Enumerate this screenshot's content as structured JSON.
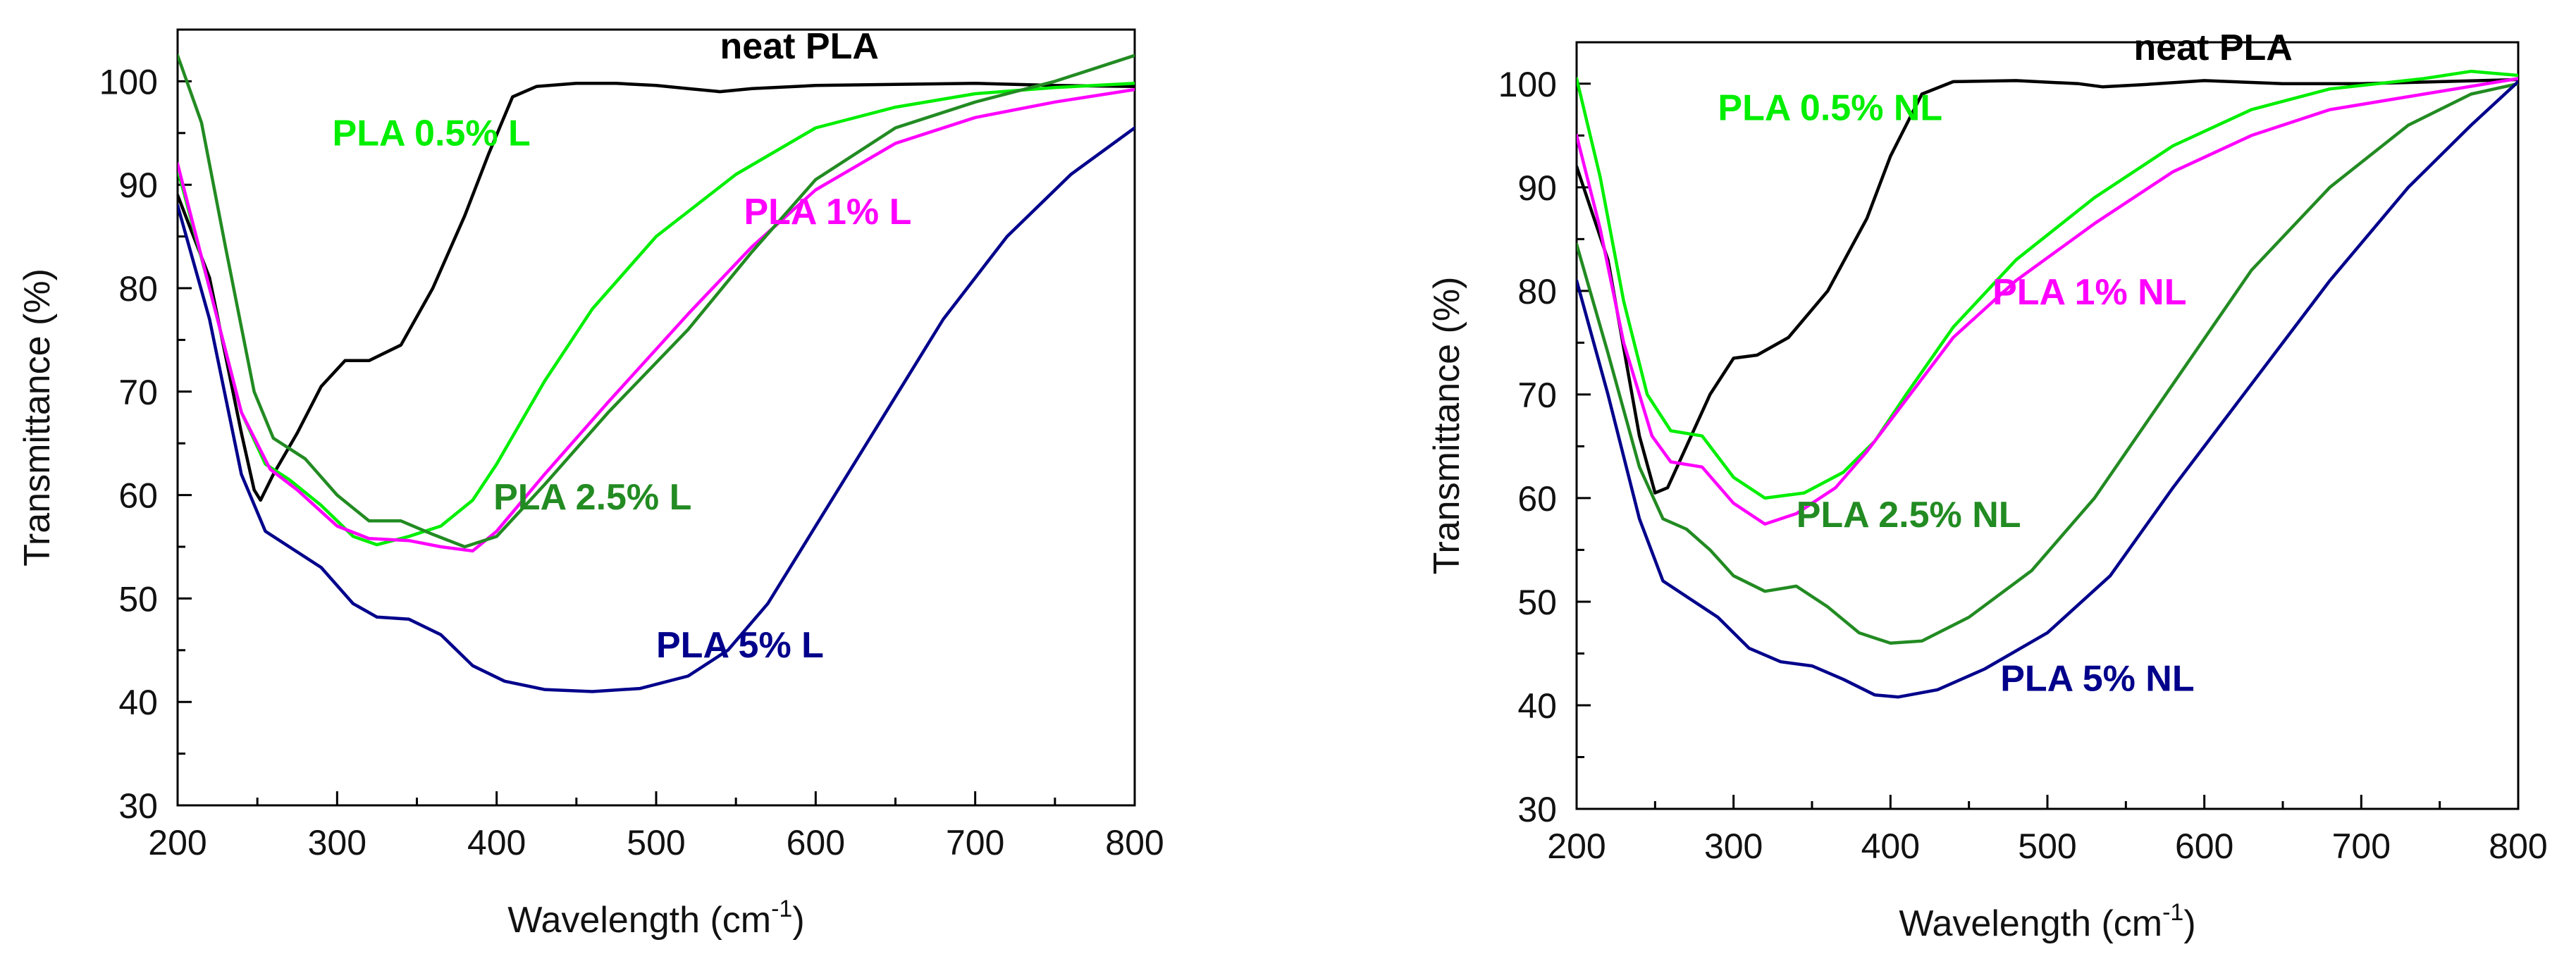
{
  "chart_data": [
    {
      "type": "line",
      "xlabel": "Wavelength (cm",
      "xlabel_sup": "-1",
      "xlabel_close": ")",
      "ylabel": "Transmittance (%)",
      "xlim": [
        200,
        800
      ],
      "ylim": [
        30,
        105
      ],
      "x_ticks": [
        "200",
        "300",
        "400",
        "500",
        "600",
        "700",
        "800"
      ],
      "y_ticks": [
        "30",
        "40",
        "50",
        "60",
        "70",
        "80",
        "90",
        "100"
      ],
      "grid": false,
      "series": [
        {
          "name": "neat PLA",
          "color": "#000000",
          "points": [
            [
              200,
              89
            ],
            [
              220,
              81
            ],
            [
              240,
              66
            ],
            [
              248,
              60.5
            ],
            [
              252,
              59.5
            ],
            [
              260,
              62
            ],
            [
              275,
              66
            ],
            [
              290,
              70.5
            ],
            [
              305,
              73
            ],
            [
              320,
              73
            ],
            [
              340,
              74.5
            ],
            [
              360,
              80
            ],
            [
              380,
              87
            ],
            [
              395,
              93
            ],
            [
              410,
              98.5
            ],
            [
              425,
              99.5
            ],
            [
              450,
              99.8
            ],
            [
              475,
              99.8
            ],
            [
              500,
              99.6
            ],
            [
              520,
              99.3
            ],
            [
              540,
              99.0
            ],
            [
              560,
              99.3
            ],
            [
              600,
              99.6
            ],
            [
              650,
              99.7
            ],
            [
              700,
              99.8
            ],
            [
              750,
              99.6
            ],
            [
              800,
              99.5
            ]
          ]
        },
        {
          "name": "PLA 0.5% L",
          "color": "#00ee00",
          "points": [
            [
              200,
              91.5
            ],
            [
              220,
              80
            ],
            [
              240,
              68
            ],
            [
              255,
              63
            ],
            [
              270,
              61.5
            ],
            [
              290,
              59
            ],
            [
              310,
              56
            ],
            [
              325,
              55.2
            ],
            [
              345,
              56
            ],
            [
              365,
              57
            ],
            [
              385,
              59.5
            ],
            [
              400,
              63
            ],
            [
              430,
              71
            ],
            [
              460,
              78
            ],
            [
              500,
              85
            ],
            [
              550,
              91
            ],
            [
              600,
              95.5
            ],
            [
              650,
              97.5
            ],
            [
              700,
              98.8
            ],
            [
              750,
              99.4
            ],
            [
              800,
              99.8
            ]
          ]
        },
        {
          "name": "PLA 1% L",
          "color": "#ff00ff",
          "points": [
            [
              200,
              92
            ],
            [
              220,
              80
            ],
            [
              240,
              68
            ],
            [
              258,
              62.5
            ],
            [
              275,
              60.5
            ],
            [
              300,
              57
            ],
            [
              320,
              55.8
            ],
            [
              345,
              55.6
            ],
            [
              365,
              55
            ],
            [
              385,
              54.6
            ],
            [
              400,
              56.5
            ],
            [
              430,
              62
            ],
            [
              470,
              69
            ],
            [
              520,
              77.5
            ],
            [
              560,
              84
            ],
            [
              600,
              89.5
            ],
            [
              650,
              94
            ],
            [
              700,
              96.5
            ],
            [
              750,
              98
            ],
            [
              800,
              99.2
            ]
          ]
        },
        {
          "name": "PLA 2.5% L",
          "color": "#228b22",
          "points": [
            [
              200,
              102.5
            ],
            [
              215,
              96
            ],
            [
              230,
              84
            ],
            [
              248,
              70
            ],
            [
              260,
              65.5
            ],
            [
              280,
              63.5
            ],
            [
              300,
              60
            ],
            [
              320,
              57.5
            ],
            [
              340,
              57.5
            ],
            [
              360,
              56.2
            ],
            [
              380,
              55
            ],
            [
              400,
              56
            ],
            [
              430,
              61
            ],
            [
              470,
              68
            ],
            [
              520,
              76
            ],
            [
              560,
              83.5
            ],
            [
              600,
              90.5
            ],
            [
              650,
              95.5
            ],
            [
              700,
              98
            ],
            [
              750,
              100
            ],
            [
              800,
              102.5
            ]
          ]
        },
        {
          "name": "PLA 5% L",
          "color": "#00008b",
          "points": [
            [
              200,
              88
            ],
            [
              220,
              77
            ],
            [
              240,
              62
            ],
            [
              255,
              56.5
            ],
            [
              270,
              55
            ],
            [
              290,
              53
            ],
            [
              310,
              49.5
            ],
            [
              325,
              48.2
            ],
            [
              345,
              48
            ],
            [
              365,
              46.5
            ],
            [
              385,
              43.5
            ],
            [
              405,
              42
            ],
            [
              430,
              41.2
            ],
            [
              460,
              41
            ],
            [
              490,
              41.3
            ],
            [
              520,
              42.5
            ],
            [
              545,
              45
            ],
            [
              570,
              49.5
            ],
            [
              600,
              57
            ],
            [
              640,
              67
            ],
            [
              680,
              77
            ],
            [
              720,
              85
            ],
            [
              760,
              91
            ],
            [
              800,
              95.5
            ]
          ]
        }
      ],
      "labels": [
        {
          "text": "neat PLA",
          "color": "#000000",
          "x": 540,
          "y": 102.2
        },
        {
          "text": "PLA 0.5% L",
          "color": "#00ee00",
          "x": 297,
          "y": 93.8
        },
        {
          "text": "PLA 1% L",
          "color": "#ff00ff",
          "x": 555,
          "y": 86.2
        },
        {
          "text": "PLA 2.5% L",
          "color": "#228b22",
          "x": 398,
          "y": 58.6
        },
        {
          "text": "PLA 5% L",
          "color": "#00008b",
          "x": 500,
          "y": 44.3
        }
      ]
    },
    {
      "type": "line",
      "xlabel": "Wavelength (cm",
      "xlabel_sup": "-1",
      "xlabel_close": ")",
      "ylabel": "Transmittance (%)",
      "xlim": [
        200,
        800
      ],
      "ylim": [
        30,
        104
      ],
      "x_ticks": [
        "200",
        "300",
        "400",
        "500",
        "600",
        "700",
        "800"
      ],
      "y_ticks": [
        "30",
        "40",
        "50",
        "60",
        "70",
        "80",
        "90",
        "100"
      ],
      "grid": false,
      "series": [
        {
          "name": "neat PLA",
          "color": "#000000",
          "points": [
            [
              200,
              92
            ],
            [
              220,
              83
            ],
            [
              240,
              66
            ],
            [
              250,
              60.5
            ],
            [
              258,
              61
            ],
            [
              270,
              65
            ],
            [
              285,
              70
            ],
            [
              300,
              73.5
            ],
            [
              315,
              73.8
            ],
            [
              335,
              75.5
            ],
            [
              360,
              80
            ],
            [
              385,
              87
            ],
            [
              400,
              93
            ],
            [
              420,
              99
            ],
            [
              440,
              100.2
            ],
            [
              480,
              100.3
            ],
            [
              520,
              100
            ],
            [
              535,
              99.7
            ],
            [
              560,
              99.9
            ],
            [
              600,
              100.3
            ],
            [
              650,
              100
            ],
            [
              700,
              100
            ],
            [
              750,
              100.2
            ],
            [
              800,
              100.4
            ]
          ]
        },
        {
          "name": "PLA 0.5% NL",
          "color": "#00ee00",
          "points": [
            [
              200,
              100.5
            ],
            [
              215,
              91
            ],
            [
              230,
              79
            ],
            [
              245,
              70
            ],
            [
              260,
              66.5
            ],
            [
              280,
              66
            ],
            [
              300,
              62
            ],
            [
              320,
              60
            ],
            [
              345,
              60.5
            ],
            [
              370,
              62.5
            ],
            [
              390,
              65.5
            ],
            [
              410,
              70
            ],
            [
              440,
              76.5
            ],
            [
              480,
              83
            ],
            [
              530,
              89
            ],
            [
              580,
              94
            ],
            [
              630,
              97.5
            ],
            [
              680,
              99.5
            ],
            [
              740,
              100.5
            ],
            [
              770,
              101.2
            ],
            [
              800,
              100.8
            ]
          ]
        },
        {
          "name": "PLA 1% NL",
          "color": "#ff00ff",
          "points": [
            [
              200,
              95
            ],
            [
              215,
              86
            ],
            [
              230,
              75
            ],
            [
              248,
              66
            ],
            [
              260,
              63.5
            ],
            [
              280,
              63
            ],
            [
              300,
              59.5
            ],
            [
              320,
              57.5
            ],
            [
              340,
              58.5
            ],
            [
              365,
              61
            ],
            [
              385,
              64.5
            ],
            [
              405,
              68.5
            ],
            [
              440,
              75.5
            ],
            [
              480,
              81
            ],
            [
              530,
              86.5
            ],
            [
              580,
              91.5
            ],
            [
              630,
              95
            ],
            [
              680,
              97.5
            ],
            [
              740,
              99
            ],
            [
              800,
              100.5
            ]
          ]
        },
        {
          "name": "PLA 2.5% NL",
          "color": "#228b22",
          "points": [
            [
              200,
              84.5
            ],
            [
              220,
              74
            ],
            [
              240,
              63
            ],
            [
              255,
              58
            ],
            [
              270,
              57
            ],
            [
              285,
              55
            ],
            [
              300,
              52.5
            ],
            [
              320,
              51
            ],
            [
              340,
              51.5
            ],
            [
              360,
              49.5
            ],
            [
              380,
              47
            ],
            [
              400,
              46
            ],
            [
              420,
              46.2
            ],
            [
              450,
              48.5
            ],
            [
              490,
              53
            ],
            [
              530,
              60
            ],
            [
              580,
              71
            ],
            [
              630,
              82
            ],
            [
              680,
              90
            ],
            [
              730,
              96
            ],
            [
              770,
              99
            ],
            [
              800,
              100
            ]
          ]
        },
        {
          "name": "PLA 5% NL",
          "color": "#00008b",
          "points": [
            [
              200,
              81
            ],
            [
              220,
              70
            ],
            [
              240,
              58
            ],
            [
              255,
              52
            ],
            [
              270,
              50.5
            ],
            [
              290,
              48.5
            ],
            [
              310,
              45.5
            ],
            [
              330,
              44.2
            ],
            [
              350,
              43.8
            ],
            [
              370,
              42.5
            ],
            [
              390,
              41
            ],
            [
              405,
              40.8
            ],
            [
              430,
              41.5
            ],
            [
              460,
              43.5
            ],
            [
              500,
              47
            ],
            [
              540,
              52.5
            ],
            [
              580,
              61
            ],
            [
              630,
              71
            ],
            [
              680,
              81
            ],
            [
              730,
              90
            ],
            [
              770,
              96
            ],
            [
              800,
              100.2
            ]
          ]
        }
      ],
      "labels": [
        {
          "text": "neat PLA",
          "color": "#000000",
          "x": 555,
          "y": 102.3
        },
        {
          "text": "PLA 0.5% NL",
          "color": "#00ee00",
          "x": 290,
          "y": 96.5
        },
        {
          "text": "PLA 1% NL",
          "color": "#ff00ff",
          "x": 465,
          "y": 78.7
        },
        {
          "text": "PLA 2.5% NL",
          "color": "#228b22",
          "x": 340,
          "y": 57.2
        },
        {
          "text": "PLA 5% NL",
          "color": "#00008b",
          "x": 470,
          "y": 41.4
        }
      ]
    }
  ]
}
